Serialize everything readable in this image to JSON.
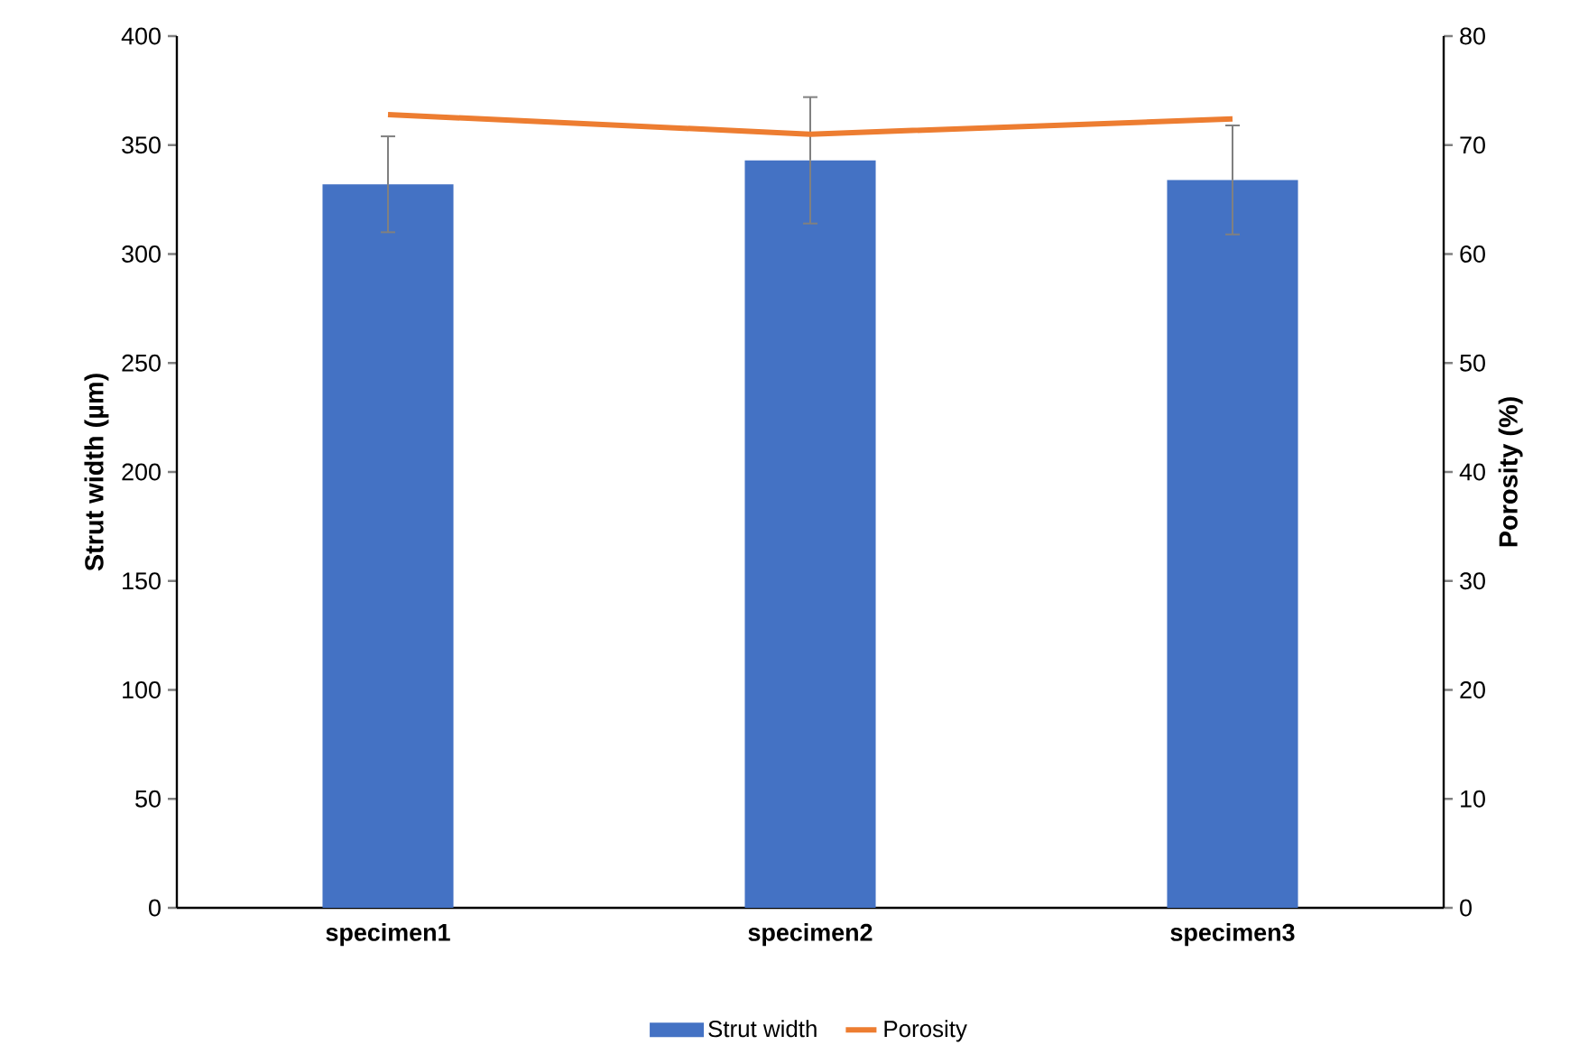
{
  "chart_data": {
    "type": "bar",
    "categories": [
      "specimen1",
      "specimen2",
      "specimen3"
    ],
    "ylabel": "Strut width (µm)",
    "y2label": "Porosity (%)",
    "ylim": [
      0,
      400
    ],
    "yticks": [
      0,
      50,
      100,
      150,
      200,
      250,
      300,
      350,
      400
    ],
    "y2lim": [
      0,
      80
    ],
    "y2ticks": [
      0,
      10,
      20,
      30,
      40,
      50,
      60,
      70,
      80
    ],
    "legend": "bottom",
    "series": [
      {
        "name": "Strut width",
        "color": "#4472c4",
        "values": [
          332,
          343,
          334
        ],
        "errors": [
          22,
          29,
          25
        ]
      },
      {
        "name": "Porosity",
        "type": "line",
        "axis": "y2",
        "color": "#ed7d31",
        "values": [
          72.8,
          71.0,
          72.4
        ]
      }
    ]
  }
}
